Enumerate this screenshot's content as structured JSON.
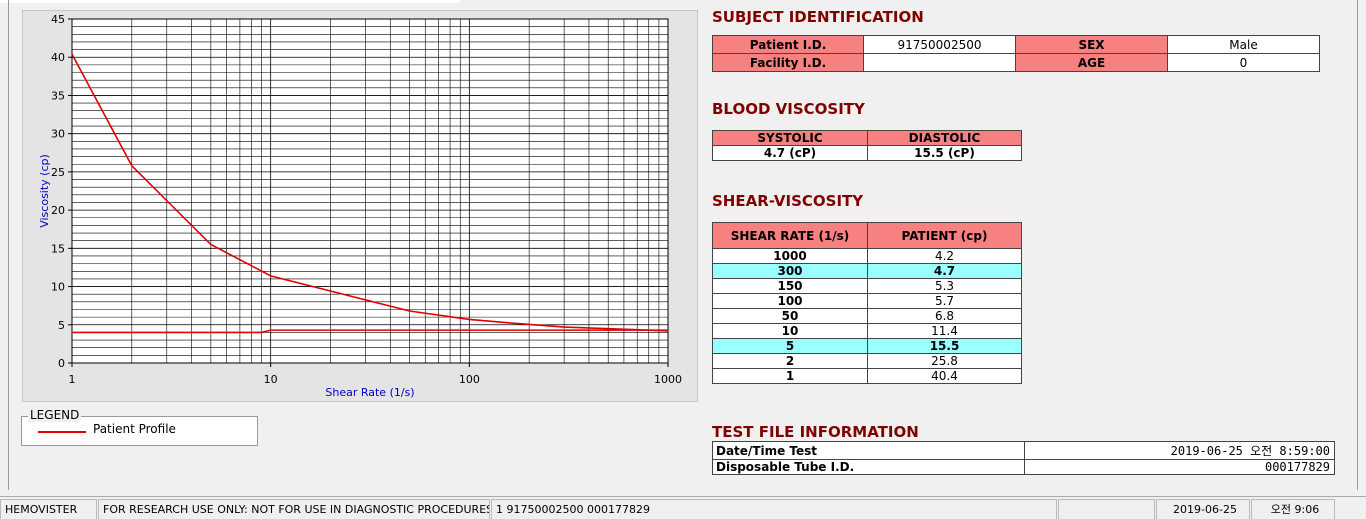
{
  "chart_data": {
    "type": "line",
    "x_label": "Shear Rate (1/s)",
    "y_label": "Viscosity (cp)",
    "log_x": true,
    "grid": true,
    "legend_title": "LEGEND",
    "x": [
      1,
      2,
      5,
      10,
      50,
      100,
      150,
      300,
      1000
    ],
    "series": [
      {
        "name": "Patient Profile",
        "color": "#e00000",
        "values": [
          40.4,
          25.8,
          15.5,
          11.4,
          6.8,
          5.7,
          5.3,
          4.7,
          4.2
        ]
      },
      {
        "color": "#e00000",
        "x": [
          1,
          9,
          10,
          1000
        ],
        "values": [
          4,
          4,
          4.3,
          4.3
        ]
      }
    ],
    "xlim": [
      1,
      1000
    ],
    "xticks": [
      1,
      10,
      100,
      1000
    ],
    "ylim": [
      0,
      45
    ],
    "yticks": [
      0,
      5,
      10,
      15,
      20,
      25,
      30,
      35,
      40,
      45
    ]
  },
  "subject": {
    "title": "SUBJECT IDENTIFICATION",
    "rows": [
      [
        "Patient I.D.",
        "91750002500",
        "SEX",
        "Male"
      ],
      [
        "Facility I.D.",
        null,
        "AGE",
        "0"
      ]
    ]
  },
  "blood_viscosity": {
    "title": "BLOOD VISCOSITY",
    "headers": [
      "SYSTOLIC",
      "DIASTOLIC"
    ],
    "values": [
      "4.7 (cP)",
      "15.5 (cP)"
    ]
  },
  "shear_viscosity": {
    "title": "SHEAR-VISCOSITY",
    "headers": [
      "SHEAR RATE (1/s)",
      "PATIENT (cp)"
    ],
    "rows": [
      {
        "rate": 1000,
        "value": 4.2,
        "highlight": false
      },
      {
        "rate": 300,
        "value": 4.7,
        "highlight": true
      },
      {
        "rate": 150,
        "value": 5.3,
        "highlight": false
      },
      {
        "rate": 100,
        "value": 5.7,
        "highlight": false
      },
      {
        "rate": 50,
        "value": 6.8,
        "highlight": false
      },
      {
        "rate": 10,
        "value": 11.4,
        "highlight": false
      },
      {
        "rate": 5,
        "value": 15.5,
        "highlight": true
      },
      {
        "rate": 2,
        "value": 25.8,
        "highlight": false
      },
      {
        "rate": 1,
        "value": 40.4,
        "highlight": false
      }
    ]
  },
  "test_file": {
    "title": "TEST FILE INFORMATION",
    "rows": [
      [
        "Date/Time Test",
        "2019-06-25   오전 8:59:00"
      ],
      [
        "Disposable Tube I.D.",
        "000177829"
      ]
    ]
  },
  "status_bar": [
    "HEMOVISTER",
    "FOR RESEARCH USE ONLY: NOT FOR USE IN DIAGNOSTIC PROCEDURES",
    "1  91750002500  000177829",
    "2019-06-25",
    "오전 9:06"
  ]
}
